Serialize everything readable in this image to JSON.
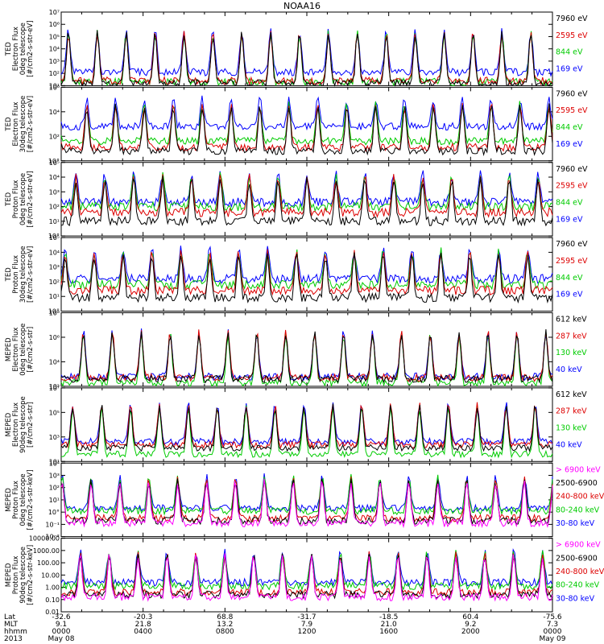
{
  "title": "NOAA16",
  "colors": {
    "black": "#000000",
    "blue": "#0000ff",
    "red": "#dd0000",
    "green": "#00cc00",
    "magenta": "#ff00ff"
  },
  "chart_data": [
    {
      "type": "line",
      "ylabel_lines": [
        "TED",
        "Electron Flux",
        "0deg telescope",
        "[#/cm2-s-str-eV]"
      ],
      "yscale": "log",
      "ylim": [
        10,
        10000000
      ],
      "ytick_labels": [
        "10¹",
        "10²",
        "10³",
        "10⁴",
        "10⁵",
        "10⁶",
        "10⁷"
      ],
      "series": [
        {
          "name": "7960 eV",
          "color": "black",
          "base": 1.2
        },
        {
          "name": "2595 eV",
          "color": "red",
          "base": 1.4
        },
        {
          "name": "844 eV",
          "color": "green",
          "base": 1.3
        },
        {
          "name": "169 eV",
          "color": "blue",
          "base": 2.1
        }
      ]
    },
    {
      "type": "line",
      "ylabel_lines": [
        "TED",
        "Electron Flux",
        "30deg telescope",
        "[#/cm2-s-str-eV]"
      ],
      "yscale": "log",
      "ylim": [
        1,
        1000000
      ],
      "ytick_labels": [
        "10°",
        "10²",
        "10⁴",
        "10⁶"
      ],
      "series": [
        {
          "name": "7960 eV",
          "color": "black",
          "base": 0.8
        },
        {
          "name": "2595 eV",
          "color": "red",
          "base": 1.1
        },
        {
          "name": "844 eV",
          "color": "green",
          "base": 1.6
        },
        {
          "name": "169 eV",
          "color": "blue",
          "base": 2.8
        }
      ]
    },
    {
      "type": "line",
      "ylabel_lines": [
        "TED",
        "Proton Flux",
        "0deg telescope",
        "[#/cm2-s-str-eV]"
      ],
      "yscale": "log",
      "ylim": [
        1,
        100000
      ],
      "ytick_labels": [
        "10°",
        "10¹",
        "10²",
        "10³",
        "10⁴",
        "10⁵"
      ],
      "series": [
        {
          "name": "7960 eV",
          "color": "black",
          "base": 1.0
        },
        {
          "name": "2595 eV",
          "color": "red",
          "base": 1.6
        },
        {
          "name": "844 eV",
          "color": "green",
          "base": 2.0
        },
        {
          "name": "169 eV",
          "color": "blue",
          "base": 2.3
        }
      ]
    },
    {
      "type": "line",
      "ylabel_lines": [
        "TED",
        "Proton Flux",
        "30deg telescope",
        "[#/cm2-s-str-eV]"
      ],
      "yscale": "log",
      "ylim": [
        1,
        100000
      ],
      "ytick_labels": [
        "10°",
        "10¹",
        "10²",
        "10³",
        "10⁴",
        "10⁵"
      ],
      "series": [
        {
          "name": "7960 eV",
          "color": "black",
          "base": 0.9
        },
        {
          "name": "2595 eV",
          "color": "red",
          "base": 1.4
        },
        {
          "name": "844 eV",
          "color": "green",
          "base": 1.8
        },
        {
          "name": "169 eV",
          "color": "blue",
          "base": 2.2
        }
      ]
    },
    {
      "type": "line",
      "ylabel_lines": [
        "MEPED",
        "Electron Flux",
        "0deg telescope",
        "[#/cm2-s-str]"
      ],
      "yscale": "log",
      "ylim": [
        100,
        100000000
      ],
      "ytick_labels": [
        "10²",
        "10⁴",
        "10⁶",
        "10⁸"
      ],
      "series": [
        {
          "name": "612 keV",
          "color": "black",
          "base": 2.6
        },
        {
          "name": "287 keV",
          "color": "red",
          "base": 2.7
        },
        {
          "name": "130 keV",
          "color": "green",
          "base": 2.3
        },
        {
          "name": "40 keV",
          "color": "blue",
          "base": 2.8
        }
      ]
    },
    {
      "type": "line",
      "ylabel_lines": [
        "MEPED",
        "Electron Flux",
        "90deg telescope",
        "[#/cm2-s-str]"
      ],
      "yscale": "log",
      "ylim": [
        10,
        100000000
      ],
      "ytick_labels": [
        "10¹",
        "10³",
        "10⁵",
        "10⁷"
      ],
      "series": [
        {
          "name": "612 keV",
          "color": "black",
          "base": 2.3
        },
        {
          "name": "287 keV",
          "color": "red",
          "base": 2.6
        },
        {
          "name": "130 keV",
          "color": "green",
          "base": 1.7
        },
        {
          "name": "40 keV",
          "color": "blue",
          "base": 2.9
        }
      ]
    },
    {
      "type": "line",
      "ylabel_lines": [
        "MEPED",
        "Proton Flux",
        "0deg telescope",
        "[#/cm2-s-str-keV]"
      ],
      "yscale": "log",
      "ylim": [
        0.01,
        10000
      ],
      "ytick_labels": [
        "10⁻²",
        "10⁻¹",
        "10°",
        "10¹",
        "10²",
        "10³",
        "10⁴"
      ],
      "series": [
        {
          "name": "> 6900 keV",
          "color": "magenta",
          "base": -0.9
        },
        {
          "name": "2500-6900",
          "color": "black",
          "base": -0.7
        },
        {
          "name": "240-800 keV",
          "color": "red",
          "base": -0.5
        },
        {
          "name": "80-240 keV",
          "color": "green",
          "base": 0.1
        },
        {
          "name": "30-80 keV",
          "color": "blue",
          "base": 0.3
        }
      ]
    },
    {
      "type": "line",
      "ylabel_lines": [
        "MEPED",
        "Proton Flux",
        "90deg telescope",
        "[#/cm2-s-str-keV]"
      ],
      "yscale": "log",
      "ylim": [
        0.01,
        10000
      ],
      "ytick_labels": [
        "0.01",
        "0.10",
        "1.00",
        "10.00",
        "100.00",
        "1000.00",
        "10000.00"
      ],
      "series": [
        {
          "name": "> 6900 keV",
          "color": "magenta",
          "base": -0.8
        },
        {
          "name": "2500-6900",
          "color": "black",
          "base": -0.6
        },
        {
          "name": "240-800 keV",
          "color": "red",
          "base": -0.4
        },
        {
          "name": "80-240 keV",
          "color": "green",
          "base": 0.1
        },
        {
          "name": "30-80 keV",
          "color": "blue",
          "base": 0.4
        }
      ]
    }
  ],
  "x_axis": {
    "row_labels": [
      "Lat",
      "MLT",
      "hhmm",
      "2013"
    ],
    "columns": [
      {
        "lat": "-32.6",
        "mlt": "9.1",
        "hhmm": "0000",
        "date": "May 08"
      },
      {
        "lat": "-20.3",
        "mlt": "21.8",
        "hhmm": "0400",
        "date": ""
      },
      {
        "lat": "68.8",
        "mlt": "13.2",
        "hhmm": "0800",
        "date": ""
      },
      {
        "lat": "-31.7",
        "mlt": "7.9",
        "hhmm": "1200",
        "date": ""
      },
      {
        "lat": "-18.5",
        "mlt": "21.0",
        "hhmm": "1600",
        "date": ""
      },
      {
        "lat": "60.4",
        "mlt": "9.2",
        "hhmm": "2000",
        "date": ""
      },
      {
        "lat": "-75.6",
        "mlt": "7.3",
        "hhmm": "0000",
        "date": "May 09"
      }
    ]
  }
}
